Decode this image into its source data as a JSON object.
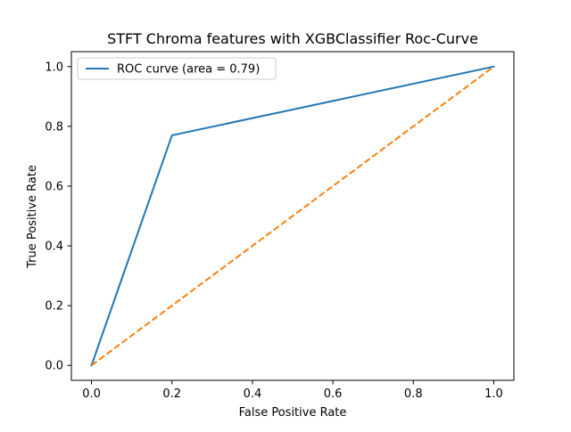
{
  "chart_data": {
    "type": "line",
    "title": "STFT Chroma features with XGBClassifier Roc-Curve",
    "xlabel": "False Positive Rate",
    "ylabel": "True Positive Rate",
    "xlim": [
      -0.05,
      1.05
    ],
    "ylim": [
      -0.05,
      1.05
    ],
    "x_ticks": [
      "0.0",
      "0.2",
      "0.4",
      "0.6",
      "0.8",
      "1.0"
    ],
    "y_ticks": [
      "0.0",
      "0.2",
      "0.4",
      "0.6",
      "0.8",
      "1.0"
    ],
    "grid": false,
    "legend_position": "upper-left",
    "series": [
      {
        "name": "ROC curve (area = 0.79)",
        "x": [
          0.0,
          0.2,
          1.0
        ],
        "y": [
          0.0,
          0.77,
          1.0
        ],
        "color": "#1f77b4",
        "style": "solid"
      },
      {
        "x": [
          0.0,
          1.0
        ],
        "y": [
          0.0,
          1.0
        ],
        "color": "#ff7f0e",
        "style": "dashed"
      }
    ]
  }
}
